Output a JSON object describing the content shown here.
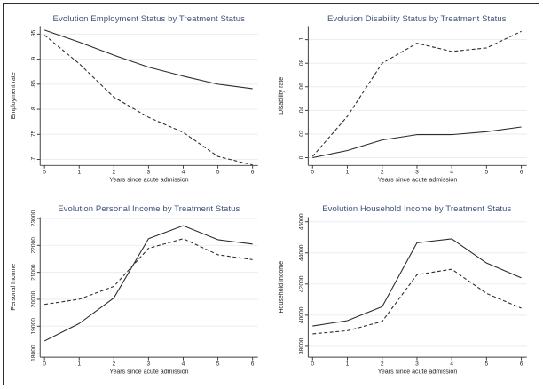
{
  "figure": {
    "background": "#ffffff",
    "outer_border_color": "#2e2e2e",
    "divider_color": "#555a5e",
    "title_color": "#3e5277",
    "axis_color": "#3f3f3f",
    "tick_text_color": "#1c1c1c",
    "grid_color": "#e6edf3",
    "line_color": "#2b2b2b"
  },
  "chart_data": [
    {
      "id": "employment-status",
      "type": "line",
      "title": "Evolution Employment Status by Treatment Status",
      "xlabel": "Years since acute admission",
      "ylabel": "Employment rate",
      "x": [
        0,
        1,
        2,
        3,
        4,
        5,
        6
      ],
      "xtick_labels": [
        "0",
        "1",
        "2",
        "3",
        "4",
        "5",
        "6"
      ],
      "ylim": [
        0.688,
        0.966
      ],
      "yticks": [
        0.7,
        0.75,
        0.8,
        0.85,
        0.9,
        0.95
      ],
      "ytick_labels": [
        ".7",
        ".75",
        ".8",
        ".85",
        ".9",
        ".95"
      ],
      "grid": true,
      "legend": "none",
      "series": [
        {
          "name": "solid",
          "style": "solid",
          "values": [
            0.958,
            0.934,
            0.908,
            0.884,
            0.866,
            0.85,
            0.841
          ]
        },
        {
          "name": "dashed",
          "style": "dashed",
          "values": [
            0.948,
            0.891,
            0.824,
            0.784,
            0.754,
            0.706,
            0.689
          ]
        }
      ]
    },
    {
      "id": "disability-status",
      "type": "line",
      "title": "Evolution Disability Status by Treatment Status",
      "xlabel": "Years since acute admission",
      "ylabel": "Disability rate",
      "x": [
        0,
        1,
        2,
        3,
        4,
        5,
        6
      ],
      "xtick_labels": [
        "0",
        "1",
        "2",
        "3",
        "4",
        "5",
        "6"
      ],
      "ylim": [
        -0.0066,
        0.1115
      ],
      "yticks": [
        0,
        0.02,
        0.04,
        0.06,
        0.08,
        0.1
      ],
      "ytick_labels": [
        "0",
        ".02",
        ".04",
        ".06",
        ".08",
        ".1"
      ],
      "grid": true,
      "legend": "none",
      "series": [
        {
          "name": "solid",
          "style": "solid",
          "values": [
            0.0,
            0.006,
            0.015,
            0.0195,
            0.0195,
            0.022,
            0.026
          ]
        },
        {
          "name": "dashed",
          "style": "dashed",
          "values": [
            0.001,
            0.035,
            0.08,
            0.097,
            0.09,
            0.093,
            0.107
          ]
        }
      ]
    },
    {
      "id": "personal-income",
      "type": "line",
      "title": "Evolution Personal Income by Treatment Status",
      "xlabel": "Years since acute admission",
      "ylabel": "Personal Income",
      "x": [
        0,
        1,
        2,
        3,
        4,
        5,
        6
      ],
      "xtick_labels": [
        "0",
        "1",
        "2",
        "3",
        "4",
        "5",
        "6"
      ],
      "ylim": [
        17850,
        23050
      ],
      "yticks": [
        18000,
        19000,
        20000,
        21000,
        22000,
        23000
      ],
      "ytick_labels": [
        "18000",
        "19000",
        "20000",
        "21000",
        "22000",
        "23000"
      ],
      "grid": true,
      "legend": "none",
      "series": [
        {
          "name": "solid",
          "style": "solid",
          "values": [
            18450,
            19100,
            20050,
            22250,
            22730,
            22210,
            22050
          ]
        },
        {
          "name": "dashed",
          "style": "dashed",
          "values": [
            19810,
            20000,
            20480,
            21890,
            22250,
            21650,
            21470
          ]
        }
      ]
    },
    {
      "id": "household-income",
      "type": "line",
      "title": "Evolution Household Income by Treatment Status",
      "xlabel": "Years since acute admission",
      "ylabel": "Household Income",
      "x": [
        0,
        1,
        2,
        3,
        4,
        5,
        6
      ],
      "xtick_labels": [
        "0",
        "1",
        "2",
        "3",
        "4",
        "5",
        "6"
      ],
      "ylim": [
        37300,
        46300
      ],
      "yticks": [
        38000,
        40000,
        42000,
        44000,
        46000
      ],
      "ytick_labels": [
        "38000",
        "40000",
        "42000",
        "44000",
        "46000"
      ],
      "grid": true,
      "legend": "none",
      "series": [
        {
          "name": "solid",
          "style": "solid",
          "values": [
            39300,
            39650,
            40550,
            44650,
            44900,
            43350,
            42400
          ]
        },
        {
          "name": "dashed",
          "style": "dashed",
          "values": [
            38800,
            39000,
            39600,
            42600,
            42950,
            41400,
            40450
          ]
        }
      ]
    }
  ]
}
